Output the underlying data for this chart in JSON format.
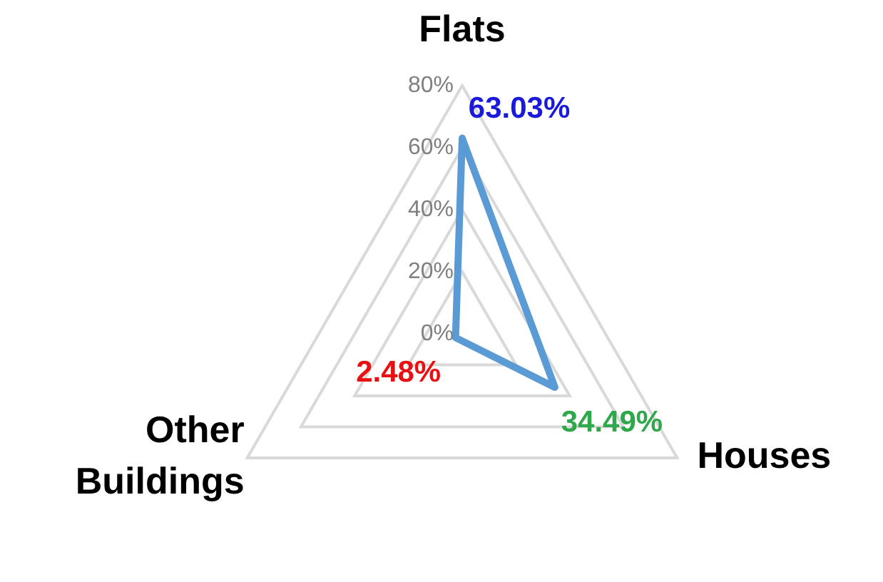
{
  "chart_data": {
    "type": "radar",
    "categories": [
      "Flats",
      "Houses",
      "Other Buildings"
    ],
    "series": [
      {
        "color": "#5b9bd5",
        "values": [
          63.03,
          34.49,
          2.48
        ],
        "colors": [
          "#1a1adb",
          "#2ea84a",
          "#e81010"
        ]
      }
    ],
    "ylim": [
      0,
      80
    ],
    "yticks": [
      {
        "value": 0,
        "label": "0%"
      },
      {
        "value": 20,
        "label": "20%"
      },
      {
        "value": 40,
        "label": "40%"
      },
      {
        "value": 60,
        "label": "60%"
      },
      {
        "value": 80,
        "label": "80%"
      }
    ],
    "value_labels": [
      "63.03%",
      "34.49%",
      "2.48%"
    ],
    "grid": true,
    "legend": false,
    "marker": "none",
    "line_style": "solid"
  }
}
